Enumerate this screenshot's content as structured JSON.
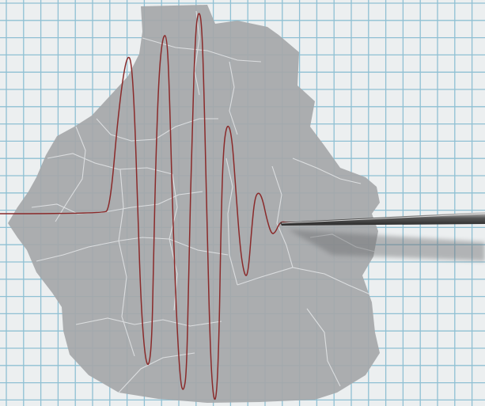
{
  "scene": {
    "paper_color": "#eceff0",
    "grid_color": "#8fc0d3",
    "map_fill": "#a5a7a9",
    "map_shadow_color": "#8a8c8e",
    "border_color": "#e4e6e8",
    "trace_color": "#8a2a2a",
    "stylus_color": "#3a3a3a",
    "stylus_highlight": "#c9c9c9",
    "grid_lines": 30
  },
  "subjects": [
    {
      "name": "graph-paper",
      "description_icon": "grid-icon"
    },
    {
      "name": "municipal-map-silhouette",
      "description_icon": "map-icon"
    },
    {
      "name": "seismograph-trace",
      "description_icon": "waveform-icon"
    },
    {
      "name": "recording-stylus",
      "description_icon": "pen-icon"
    }
  ]
}
